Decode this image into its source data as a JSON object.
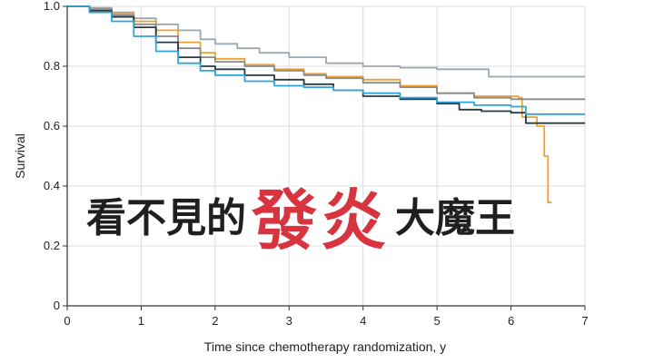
{
  "chart_data": {
    "type": "line",
    "subtype": "kaplan-meier step",
    "xlabel": "Time since chemotherapy randomization, y",
    "ylabel": "Survival",
    "xlim": [
      0,
      7
    ],
    "ylim": [
      0,
      1.0
    ],
    "x_ticks": [
      "0",
      "1",
      "2",
      "3",
      "4",
      "5",
      "6",
      "7"
    ],
    "y_ticks": [
      "0",
      "0.2",
      "0.4",
      "0.6",
      "0.8",
      "1.0"
    ],
    "series": [
      {
        "name": "light-gray",
        "color": "#9aa8b0",
        "points": [
          [
            0,
            1.0
          ],
          [
            0.3,
            0.995
          ],
          [
            0.6,
            0.98
          ],
          [
            0.9,
            0.96
          ],
          [
            1.2,
            0.94
          ],
          [
            1.5,
            0.92
          ],
          [
            1.8,
            0.89
          ],
          [
            2.0,
            0.875
          ],
          [
            2.3,
            0.86
          ],
          [
            2.6,
            0.845
          ],
          [
            3.0,
            0.83
          ],
          [
            3.5,
            0.81
          ],
          [
            4.0,
            0.8
          ],
          [
            4.5,
            0.795
          ],
          [
            5.0,
            0.79
          ],
          [
            5.5,
            0.79
          ],
          [
            5.7,
            0.765
          ],
          [
            7.0,
            0.765
          ]
        ]
      },
      {
        "name": "orange",
        "color": "#f0a030",
        "points": [
          [
            0,
            1.0
          ],
          [
            0.3,
            0.99
          ],
          [
            0.6,
            0.975
          ],
          [
            0.9,
            0.95
          ],
          [
            1.2,
            0.92
          ],
          [
            1.5,
            0.88
          ],
          [
            1.8,
            0.845
          ],
          [
            2.0,
            0.825
          ],
          [
            2.4,
            0.805
          ],
          [
            2.8,
            0.79
          ],
          [
            3.2,
            0.775
          ],
          [
            3.5,
            0.765
          ],
          [
            4.0,
            0.755
          ],
          [
            4.5,
            0.735
          ],
          [
            5.0,
            0.71
          ],
          [
            5.5,
            0.7
          ],
          [
            6.1,
            0.695
          ],
          [
            6.15,
            0.63
          ],
          [
            6.35,
            0.6
          ],
          [
            6.45,
            0.5
          ],
          [
            6.5,
            0.345
          ],
          [
            6.55,
            0.345
          ]
        ]
      },
      {
        "name": "medium-gray",
        "color": "#8a8a8a",
        "points": [
          [
            0,
            1.0
          ],
          [
            0.3,
            0.99
          ],
          [
            0.6,
            0.97
          ],
          [
            0.9,
            0.94
          ],
          [
            1.2,
            0.9
          ],
          [
            1.5,
            0.86
          ],
          [
            1.8,
            0.83
          ],
          [
            2.0,
            0.815
          ],
          [
            2.4,
            0.8
          ],
          [
            2.8,
            0.785
          ],
          [
            3.2,
            0.77
          ],
          [
            3.5,
            0.76
          ],
          [
            4.0,
            0.745
          ],
          [
            4.5,
            0.73
          ],
          [
            5.0,
            0.71
          ],
          [
            5.5,
            0.695
          ],
          [
            6.0,
            0.69
          ],
          [
            7.0,
            0.69
          ]
        ]
      },
      {
        "name": "dark-slate",
        "color": "#2b3a42",
        "points": [
          [
            0,
            1.0
          ],
          [
            0.3,
            0.985
          ],
          [
            0.6,
            0.965
          ],
          [
            0.9,
            0.93
          ],
          [
            1.2,
            0.88
          ],
          [
            1.5,
            0.83
          ],
          [
            1.8,
            0.8
          ],
          [
            2.0,
            0.79
          ],
          [
            2.4,
            0.77
          ],
          [
            2.8,
            0.755
          ],
          [
            3.2,
            0.74
          ],
          [
            3.6,
            0.72
          ],
          [
            4.0,
            0.7
          ],
          [
            4.5,
            0.69
          ],
          [
            5.0,
            0.675
          ],
          [
            5.3,
            0.655
          ],
          [
            5.6,
            0.65
          ],
          [
            6.0,
            0.645
          ],
          [
            6.2,
            0.61
          ],
          [
            7.0,
            0.61
          ]
        ]
      },
      {
        "name": "blue",
        "color": "#2aa6dc",
        "points": [
          [
            0,
            1.0
          ],
          [
            0.3,
            0.98
          ],
          [
            0.6,
            0.95
          ],
          [
            0.9,
            0.9
          ],
          [
            1.2,
            0.85
          ],
          [
            1.5,
            0.81
          ],
          [
            1.8,
            0.785
          ],
          [
            2.0,
            0.77
          ],
          [
            2.4,
            0.75
          ],
          [
            2.8,
            0.735
          ],
          [
            3.2,
            0.73
          ],
          [
            3.6,
            0.72
          ],
          [
            4.0,
            0.71
          ],
          [
            4.5,
            0.695
          ],
          [
            5.0,
            0.68
          ],
          [
            5.5,
            0.67
          ],
          [
            6.0,
            0.665
          ],
          [
            6.2,
            0.64
          ],
          [
            7.0,
            0.64
          ]
        ]
      }
    ]
  },
  "banner": {
    "part1": "看不見的",
    "part2": "發炎",
    "part3": "大魔王"
  },
  "colors": {
    "banner_dark": "#1f1f1f",
    "banner_red": "#d8343f",
    "grid": "#dcdcdc",
    "axis": "#333333"
  }
}
